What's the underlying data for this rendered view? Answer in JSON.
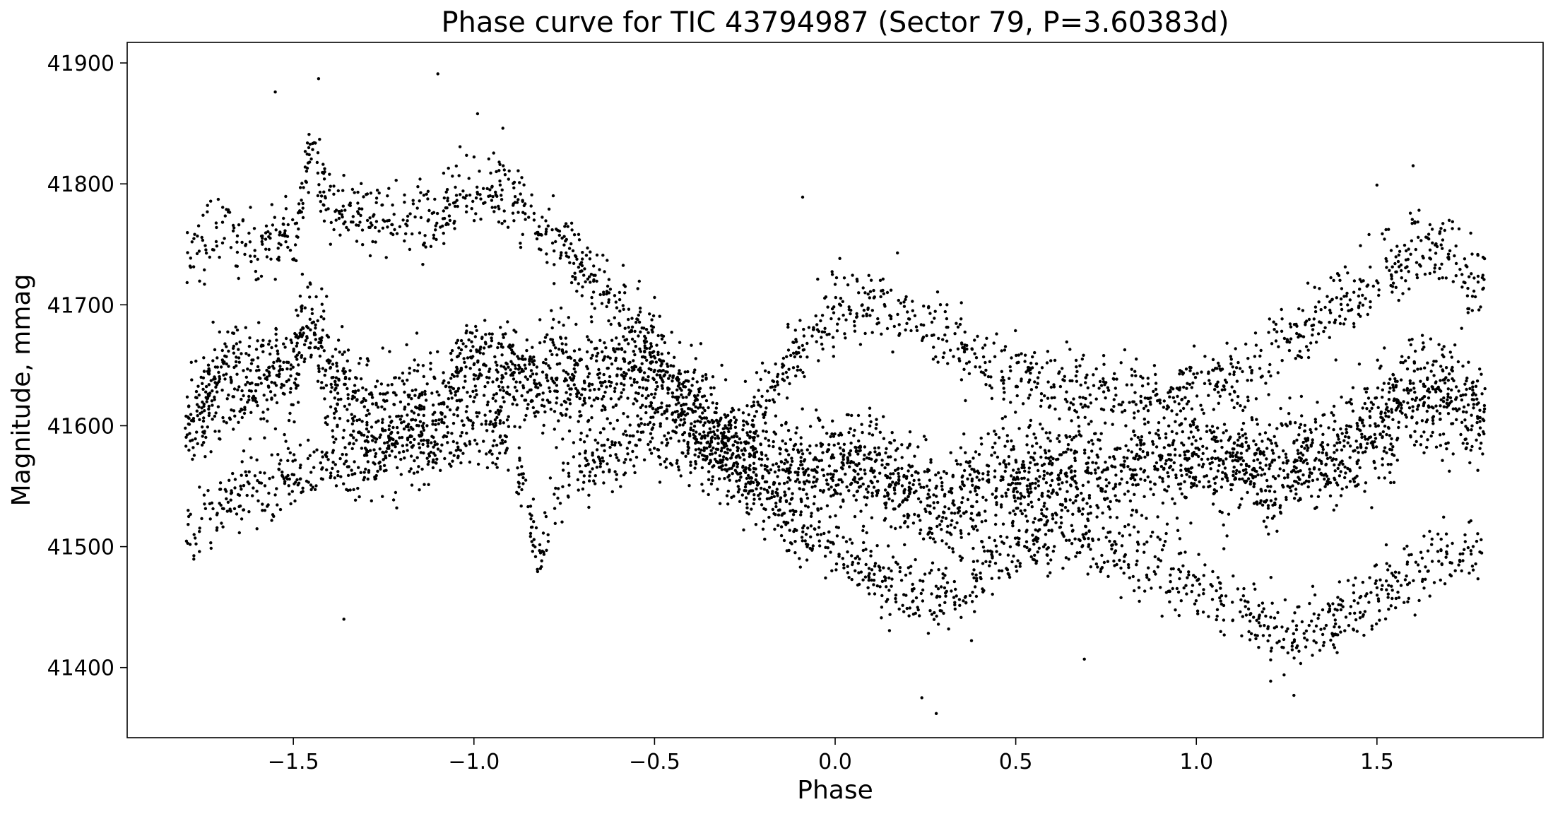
{
  "chart_data": {
    "type": "scatter",
    "title": "Phase curve for TIC 43794987 (Sector 79, P=3.60383d)",
    "xlabel": "Phase",
    "ylabel": "Magnitude, mmag",
    "xlim": [
      -1.96,
      1.96
    ],
    "ylim": [
      41342,
      41917
    ],
    "xticks": [
      -1.5,
      -1.0,
      -0.5,
      0.0,
      0.5,
      1.0,
      1.5
    ],
    "xtick_labels": [
      "−1.5",
      "−1.0",
      "−0.5",
      "0.0",
      "0.5",
      "1.0",
      "1.5"
    ],
    "yticks": [
      41400,
      41500,
      41600,
      41700,
      41800,
      41900
    ],
    "ytick_labels": [
      "41400",
      "41500",
      "41600",
      "41700",
      "41800",
      "41900"
    ],
    "grid": false,
    "marker_color": "#000000",
    "x_range_of_points": [
      -1.8,
      1.8
    ],
    "series": [
      {
        "trend_points": [
          {
            "x": -1.78,
            "y": 41600
          },
          {
            "x": -1.7,
            "y": 41640
          },
          {
            "x": -1.6,
            "y": 41640
          },
          {
            "x": -1.5,
            "y": 41650
          },
          {
            "x": -1.45,
            "y": 41700
          },
          {
            "x": -1.4,
            "y": 41640
          },
          {
            "x": -1.3,
            "y": 41600
          },
          {
            "x": -1.2,
            "y": 41610
          },
          {
            "x": -1.1,
            "y": 41620
          },
          {
            "x": -1.0,
            "y": 41650
          },
          {
            "x": -0.9,
            "y": 41640
          },
          {
            "x": -0.8,
            "y": 41640
          },
          {
            "x": -0.7,
            "y": 41630
          },
          {
            "x": -0.6,
            "y": 41650
          },
          {
            "x": -0.5,
            "y": 41640
          },
          {
            "x": -0.4,
            "y": 41610
          },
          {
            "x": -0.3,
            "y": 41580
          },
          {
            "x": -0.2,
            "y": 41570
          },
          {
            "x": -0.1,
            "y": 41560
          },
          {
            "x": 0.0,
            "y": 41560
          },
          {
            "x": 0.1,
            "y": 41570
          },
          {
            "x": 0.2,
            "y": 41550
          },
          {
            "x": 0.3,
            "y": 41530
          },
          {
            "x": 0.4,
            "y": 41550
          },
          {
            "x": 0.5,
            "y": 41560
          },
          {
            "x": 0.6,
            "y": 41560
          },
          {
            "x": 0.7,
            "y": 41560
          },
          {
            "x": 0.8,
            "y": 41560
          },
          {
            "x": 0.9,
            "y": 41570
          },
          {
            "x": 1.0,
            "y": 41580
          },
          {
            "x": 1.1,
            "y": 41570
          },
          {
            "x": 1.2,
            "y": 41560
          },
          {
            "x": 1.3,
            "y": 41570
          },
          {
            "x": 1.4,
            "y": 41580
          },
          {
            "x": 1.5,
            "y": 41600
          },
          {
            "x": 1.6,
            "y": 41620
          },
          {
            "x": 1.7,
            "y": 41620
          },
          {
            "x": 1.78,
            "y": 41610
          }
        ],
        "upper_branch": [
          {
            "x": -1.78,
            "y": 41740
          },
          {
            "x": -1.7,
            "y": 41760
          },
          {
            "x": -1.6,
            "y": 41745
          },
          {
            "x": -1.5,
            "y": 41760
          },
          {
            "x": -1.45,
            "y": 41830
          },
          {
            "x": -1.4,
            "y": 41780
          },
          {
            "x": -1.12,
            "y": 41770
          },
          {
            "x": -1.0,
            "y": 41800
          },
          {
            "x": -0.9,
            "y": 41790
          },
          {
            "x": -0.8,
            "y": 41760
          },
          {
            "x": -0.7,
            "y": 41730
          },
          {
            "x": -0.6,
            "y": 41700
          },
          {
            "x": -0.5,
            "y": 41660
          },
          {
            "x": -0.4,
            "y": 41620
          },
          {
            "x": -0.3,
            "y": 41580
          },
          {
            "x": 0.0,
            "y": 41700
          },
          {
            "x": 0.2,
            "y": 41690
          },
          {
            "x": 0.5,
            "y": 41640
          },
          {
            "x": 0.9,
            "y": 41620
          },
          {
            "x": 1.1,
            "y": 41640
          },
          {
            "x": 1.3,
            "y": 41680
          },
          {
            "x": 1.5,
            "y": 41720
          },
          {
            "x": 1.6,
            "y": 41750
          },
          {
            "x": 1.7,
            "y": 41740
          },
          {
            "x": 1.78,
            "y": 41720
          }
        ],
        "lower_branch": [
          {
            "x": -1.78,
            "y": 41510
          },
          {
            "x": -1.7,
            "y": 41540
          },
          {
            "x": -1.5,
            "y": 41560
          },
          {
            "x": -1.3,
            "y": 41570
          },
          {
            "x": -1.1,
            "y": 41580
          },
          {
            "x": -0.9,
            "y": 41590
          },
          {
            "x": -0.82,
            "y": 41490
          },
          {
            "x": -0.75,
            "y": 41560
          },
          {
            "x": -0.5,
            "y": 41590
          },
          {
            "x": -0.3,
            "y": 41570
          },
          {
            "x": -0.2,
            "y": 41540
          },
          {
            "x": -0.1,
            "y": 41510
          },
          {
            "x": 0.0,
            "y": 41500
          },
          {
            "x": 0.1,
            "y": 41480
          },
          {
            "x": 0.2,
            "y": 41460
          },
          {
            "x": 0.3,
            "y": 41455
          },
          {
            "x": 0.4,
            "y": 41475
          },
          {
            "x": 0.5,
            "y": 41500
          },
          {
            "x": 0.6,
            "y": 41510
          },
          {
            "x": 0.7,
            "y": 41500
          },
          {
            "x": 0.8,
            "y": 41490
          },
          {
            "x": 0.9,
            "y": 41480
          },
          {
            "x": 1.0,
            "y": 41470
          },
          {
            "x": 1.1,
            "y": 41450
          },
          {
            "x": 1.2,
            "y": 41435
          },
          {
            "x": 1.3,
            "y": 41430
          },
          {
            "x": 1.4,
            "y": 41440
          },
          {
            "x": 1.5,
            "y": 41460
          },
          {
            "x": 1.6,
            "y": 41480
          },
          {
            "x": 1.7,
            "y": 41490
          },
          {
            "x": 1.78,
            "y": 41500
          }
        ],
        "outliers": [
          {
            "x": -1.55,
            "y": 41876
          },
          {
            "x": -1.43,
            "y": 41887
          },
          {
            "x": -1.1,
            "y": 41891
          },
          {
            "x": -0.99,
            "y": 41858
          },
          {
            "x": -0.92,
            "y": 41846
          },
          {
            "x": 0.28,
            "y": 41362
          },
          {
            "x": 0.24,
            "y": 41375
          },
          {
            "x": 1.27,
            "y": 41377
          },
          {
            "x": -1.36,
            "y": 41440
          },
          {
            "x": 1.6,
            "y": 41815
          },
          {
            "x": 0.69,
            "y": 41407
          },
          {
            "x": 1.5,
            "y": 41799
          },
          {
            "x": -0.09,
            "y": 41789
          }
        ]
      }
    ]
  }
}
